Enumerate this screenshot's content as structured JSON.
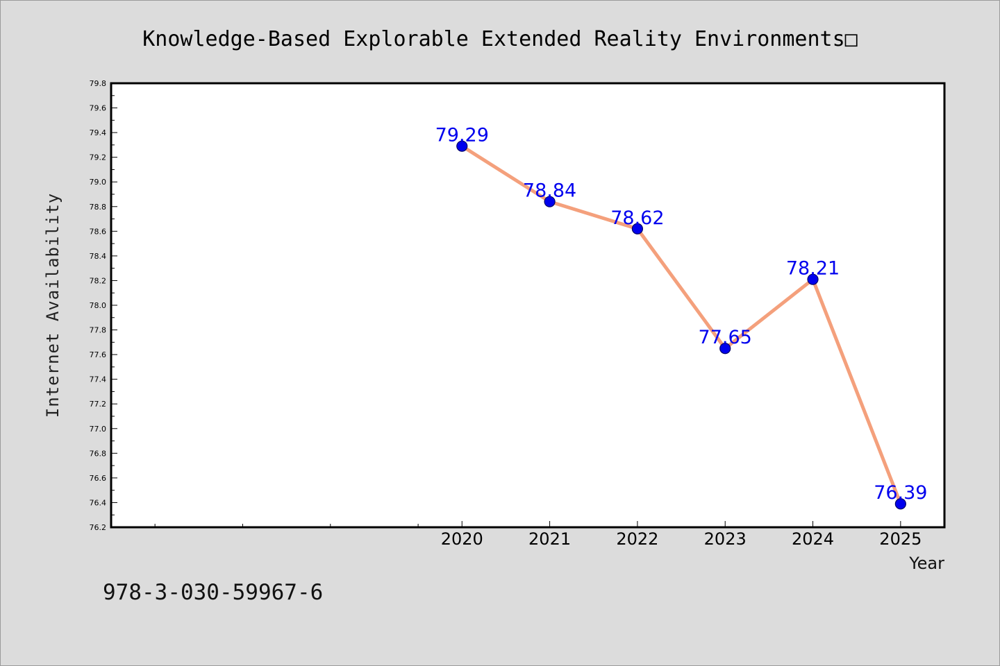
{
  "footer_text": "978-3-030-59967-6",
  "colors": {
    "background": "#dcdcdc",
    "plot_background": "#ffffff",
    "line": "#f4a07c",
    "marker_fill": "#0000ee",
    "marker_edge": "#000066",
    "data_label": "#0000ee"
  },
  "chart_data": {
    "type": "line",
    "title": "Knowledge-Based Explorable Extended Reality Environments□",
    "xlabel": "Year",
    "ylabel": "Internet Availability",
    "categories": [
      "2020",
      "2021",
      "2022",
      "2023",
      "2024",
      "2025"
    ],
    "x": [
      2020,
      2021,
      2022,
      2023,
      2024,
      2025
    ],
    "series": [
      {
        "values": [
          79.29,
          78.84,
          78.62,
          77.65,
          78.21,
          76.39
        ]
      }
    ],
    "data_labels": [
      "79.29",
      "78.84",
      "78.62",
      "77.65",
      "78.21",
      "76.39"
    ],
    "xlim": [
      2016,
      2025.5
    ],
    "ylim": [
      76.2,
      79.8
    ],
    "yticks": [
      "76.2",
      "76.4",
      "76.6",
      "76.8",
      "77.0",
      "77.2",
      "77.4",
      "77.6",
      "77.8",
      "78.0",
      "78.2",
      "78.4",
      "78.6",
      "78.8",
      "79.0",
      "79.2",
      "79.4",
      "79.6",
      "79.8"
    ],
    "grid": false,
    "legend": "none"
  }
}
